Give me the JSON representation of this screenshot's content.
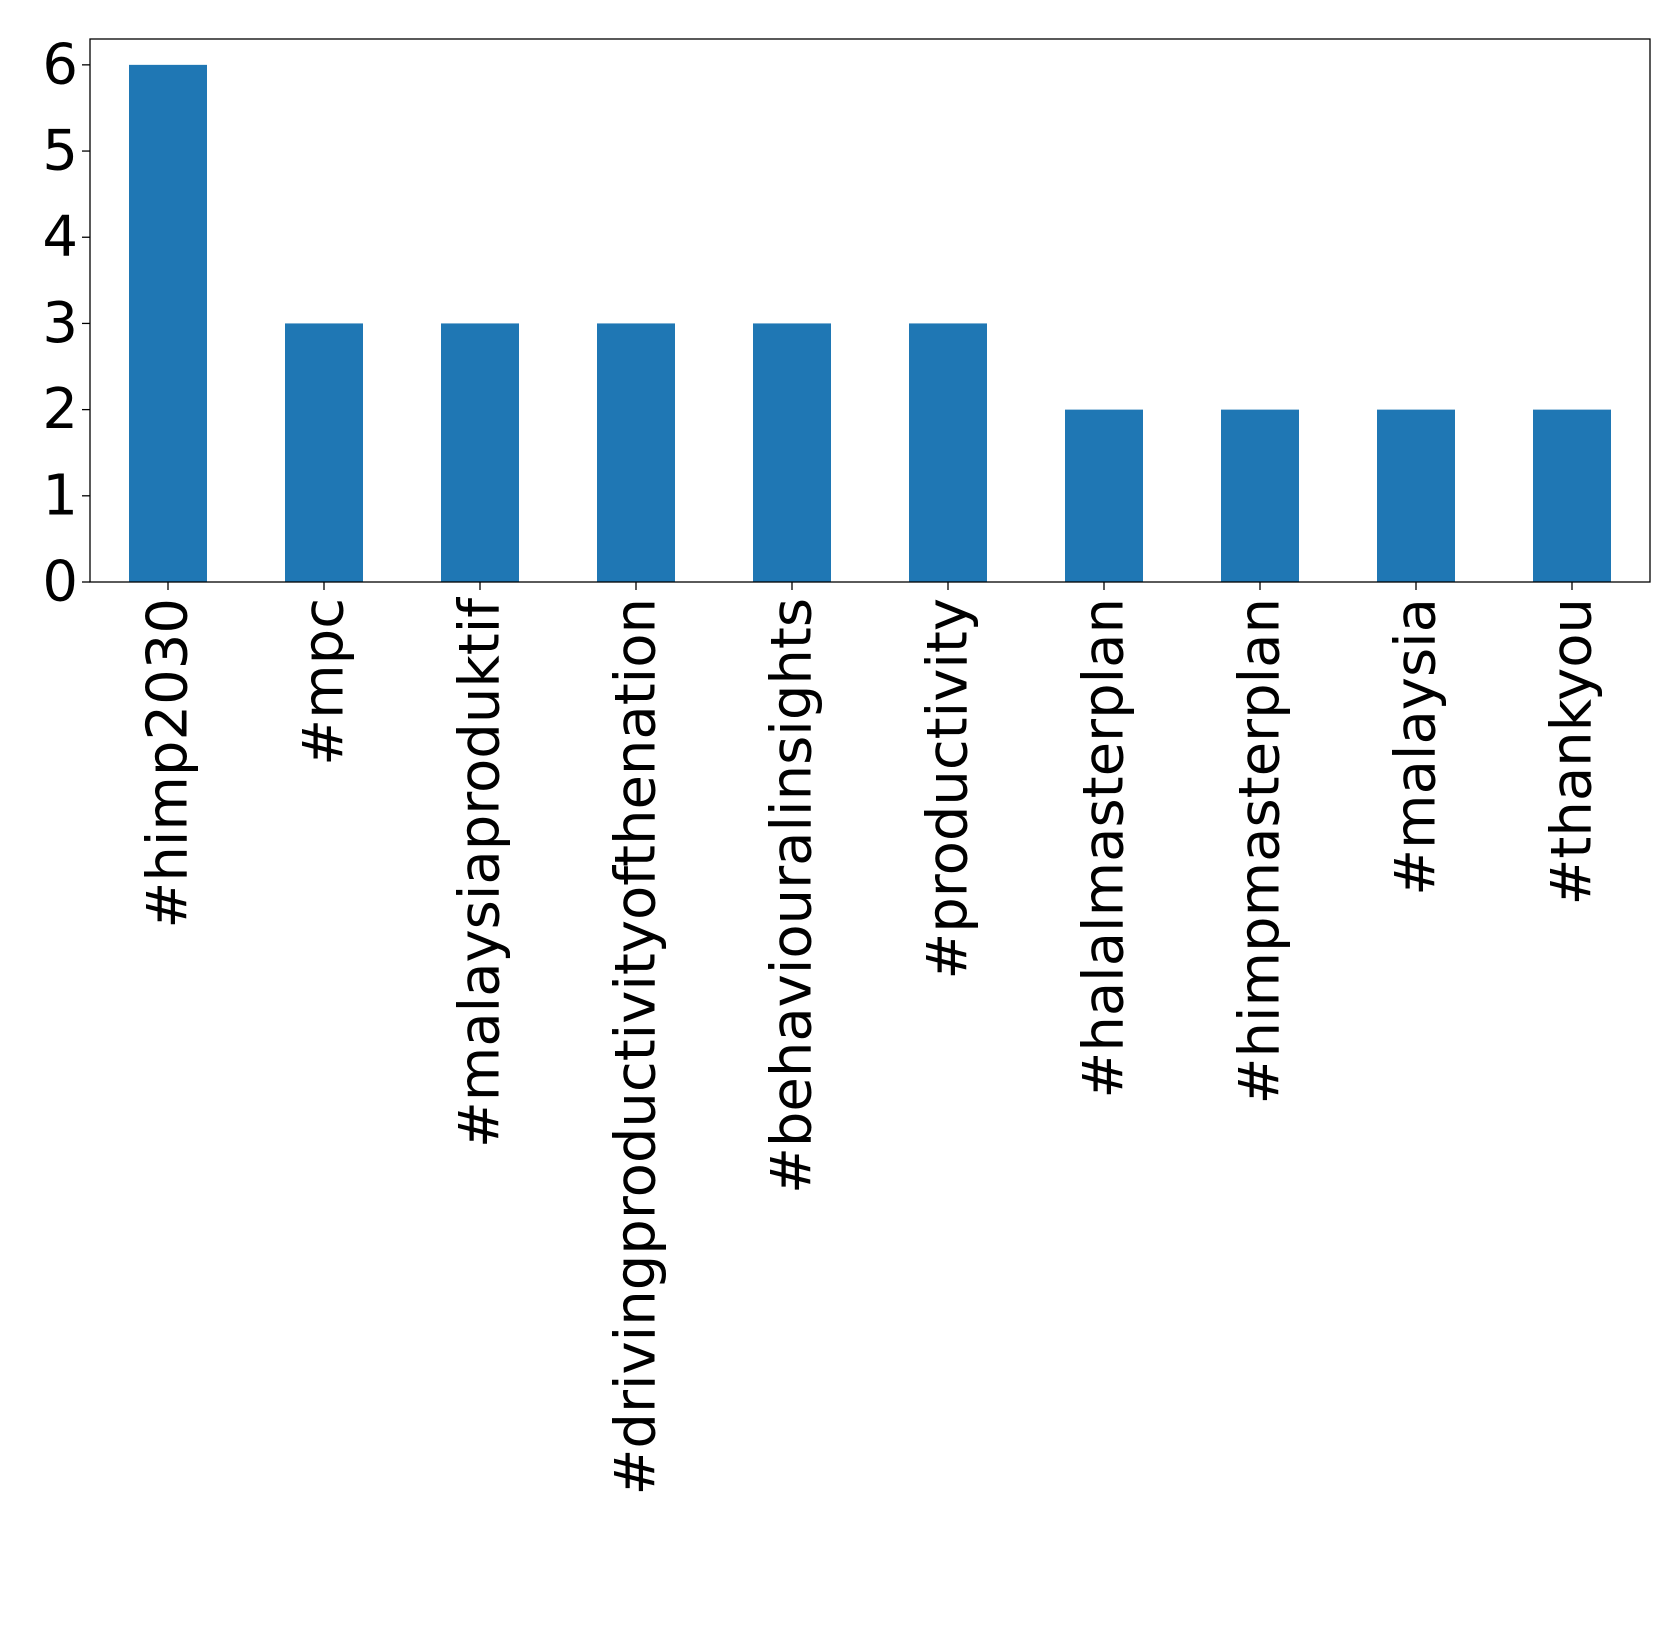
{
  "chart_data": {
    "type": "bar",
    "categories": [
      "#himp2030",
      "#mpc",
      "#malaysiaproduktif",
      "#drivingproductivityofthenation",
      "#behaviouralinsights",
      "#productivity",
      "#halalmasterplan",
      "#himpmasterplan",
      "#malaysia",
      "#thankyou"
    ],
    "values": [
      6,
      3,
      3,
      3,
      3,
      3,
      2,
      2,
      2,
      2
    ],
    "ylim": [
      0,
      6.3
    ],
    "yticks": [
      "0",
      "1",
      "2",
      "3",
      "4",
      "5",
      "6"
    ],
    "bar_color": "#1f77b4",
    "grid": false,
    "legend": false
  }
}
